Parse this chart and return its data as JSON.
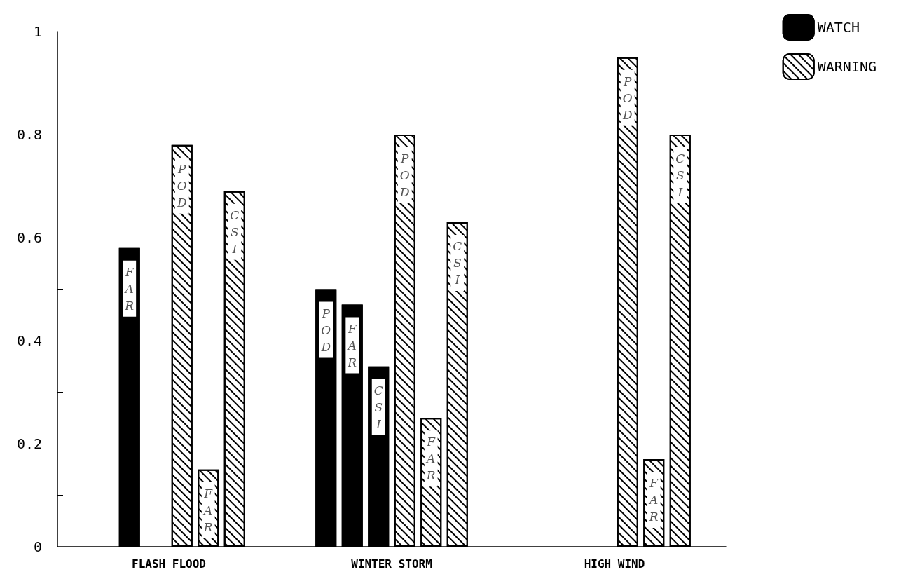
{
  "chart_data": {
    "type": "bar",
    "categories": [
      "FLASH FLOOD",
      "WINTER STORM",
      "HIGH WIND"
    ],
    "series": [
      {
        "name": "WATCH",
        "color": "#000000",
        "values": [
          null,
          0.5,
          null
        ],
        "value_labels": [
          null,
          "POD",
          null
        ]
      },
      {
        "color": "#000000",
        "values": [
          0.58,
          0.47,
          null
        ],
        "value_labels": [
          "FAR",
          "FAR",
          null
        ]
      },
      {
        "color": "#000000",
        "values": [
          null,
          0.35,
          null
        ],
        "value_labels": [
          null,
          "CSI",
          null
        ]
      },
      {
        "name": "WARNING",
        "color": "#ffffff",
        "values": [
          0.78,
          0.8,
          0.95
        ],
        "value_labels": [
          "POD",
          "POD",
          "POD"
        ]
      },
      {
        "color": "#ffffff",
        "values": [
          0.15,
          0.25,
          0.17
        ],
        "value_labels": [
          "FAR",
          "FAR",
          "FAR"
        ]
      },
      {
        "color": "#ffffff",
        "values": [
          0.69,
          0.63,
          0.8
        ],
        "value_labels": [
          "CSI",
          "CSI",
          "CSI"
        ]
      }
    ],
    "ylim": [
      0,
      1
    ],
    "yticks": [
      0,
      {
        "value": 0.1,
        "label": null
      },
      {
        "value": 0.2,
        "label": "0.2"
      },
      {
        "value": 0.3,
        "label": null
      },
      {
        "value": 0.4,
        "label": "0.4"
      },
      {
        "value": 0.5,
        "label": null
      },
      {
        "value": 0.6,
        "label": "0.6"
      },
      {
        "value": 0.7,
        "label": null
      },
      {
        "value": 0.8,
        "label": "0.8"
      },
      {
        "value": 0.9,
        "label": null
      },
      1
    ],
    "grid": false,
    "legend": "top right"
  }
}
